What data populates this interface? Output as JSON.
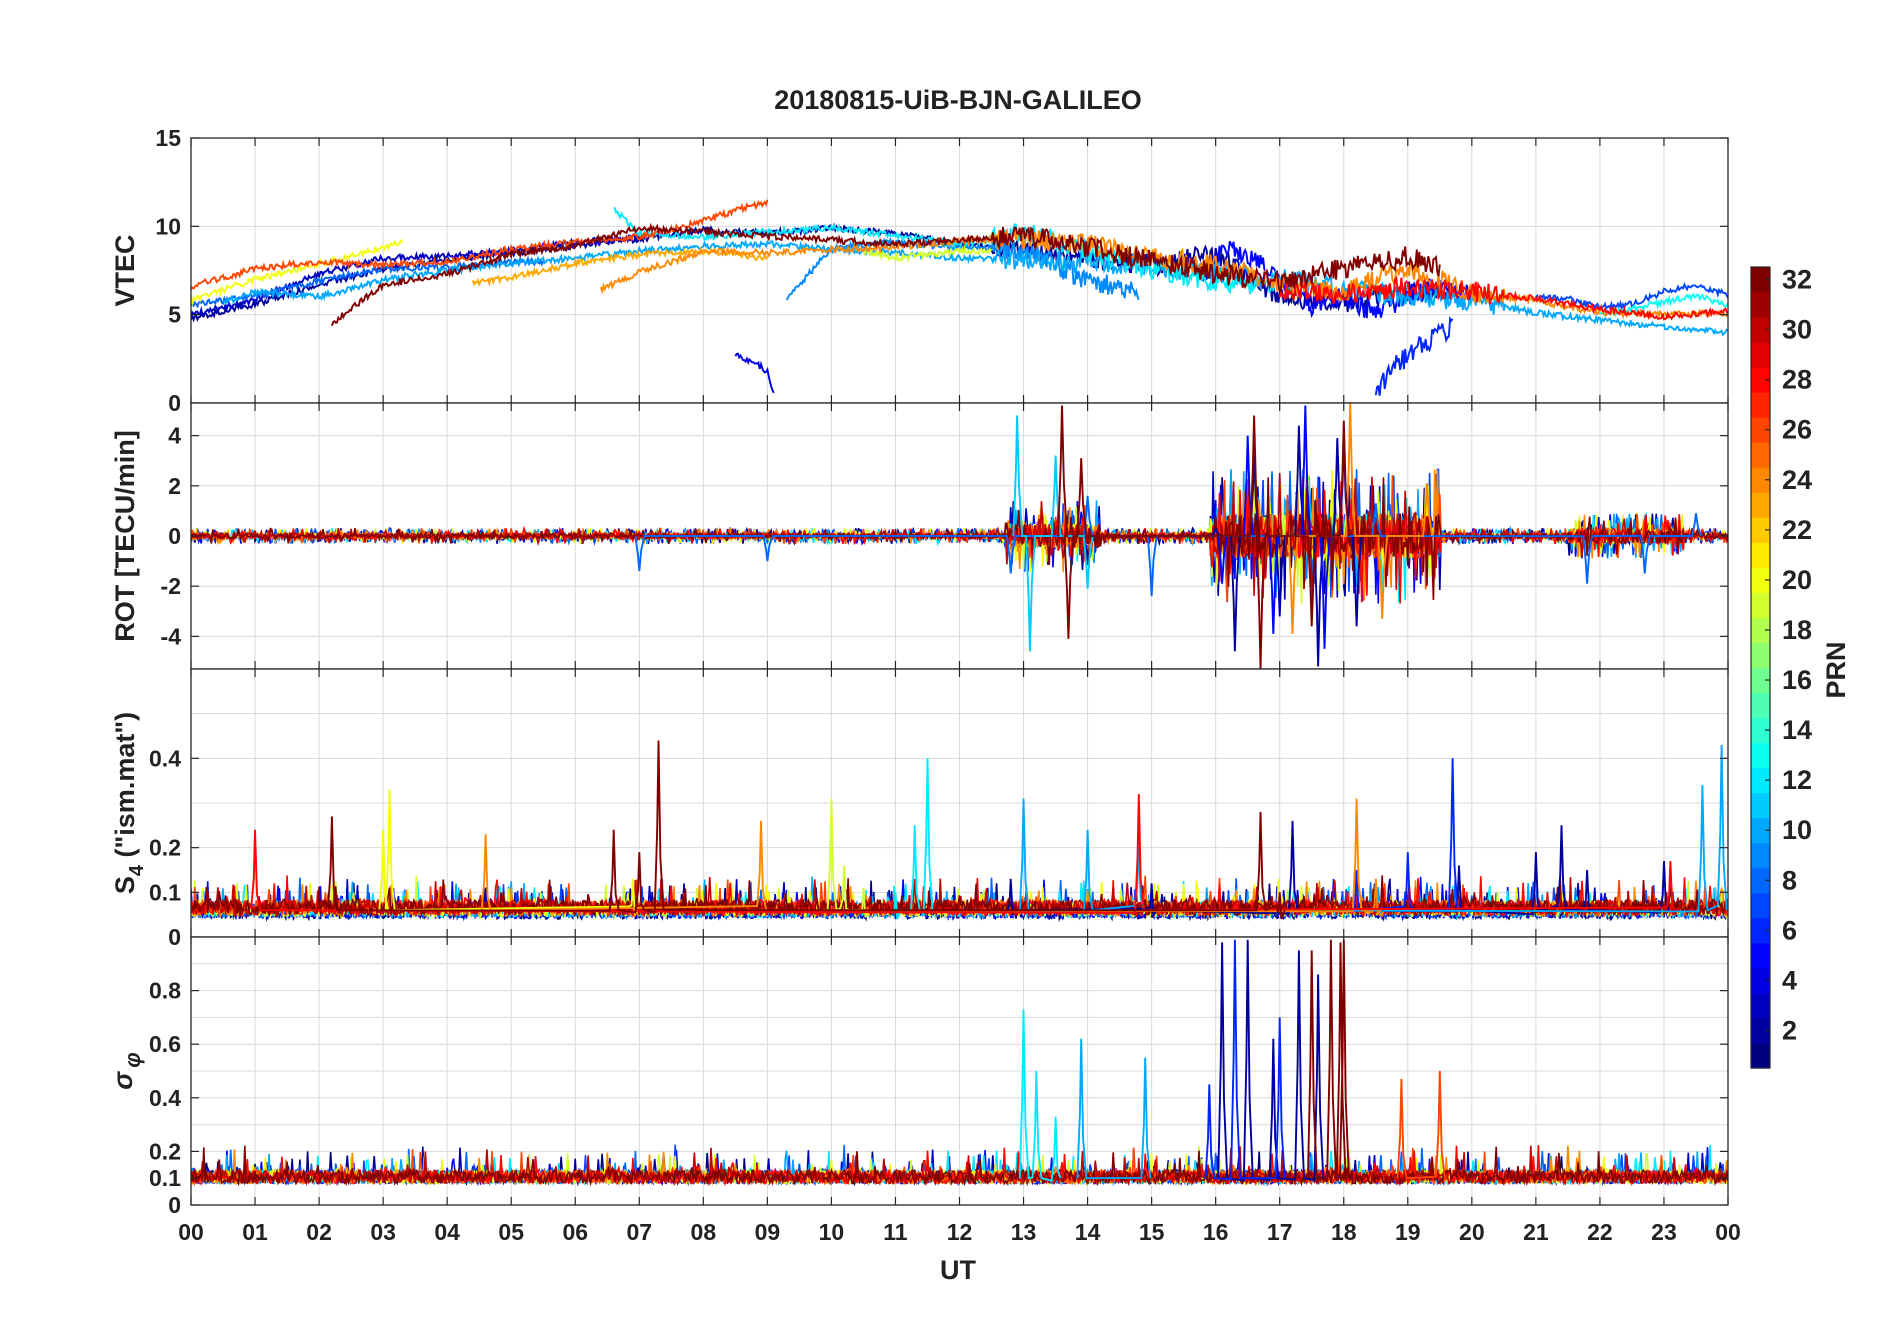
{
  "title": "20180815-UiB-BJN-GALILEO",
  "chart_data": {
    "type": "line",
    "title": "20180815-UiB-BJN-GALILEO",
    "xlabel": "UT",
    "x_range_hours": [
      0,
      24
    ],
    "x_ticks": [
      "00",
      "01",
      "02",
      "03",
      "04",
      "05",
      "06",
      "07",
      "08",
      "09",
      "10",
      "11",
      "12",
      "13",
      "14",
      "15",
      "16",
      "17",
      "18",
      "19",
      "20",
      "21",
      "22",
      "23",
      "00"
    ],
    "colorbar": {
      "label": "PRN",
      "range": [
        1,
        32
      ],
      "ticks": [
        "2",
        "4",
        "6",
        "8",
        "10",
        "12",
        "14",
        "16",
        "18",
        "20",
        "22",
        "24",
        "26",
        "28",
        "30",
        "32"
      ],
      "colormap": "jet"
    },
    "panels": [
      {
        "id": "vtec",
        "ylabel": "VTEC",
        "ylim": [
          0,
          15
        ],
        "yticks": [
          "0",
          "5",
          "10",
          "15"
        ],
        "series": [
          {
            "prn": 2,
            "x": [
              0.0,
              1.0,
              2.0,
              3.0,
              4.0,
              5.0,
              6.0,
              7.0,
              8.0,
              9.0,
              10.0,
              11.0,
              12.0,
              13.0,
              14.0,
              15.0,
              16.0,
              17.0,
              18.0,
              19.0,
              20.0
            ],
            "y": [
              4.8,
              5.6,
              6.7,
              7.6,
              8.1,
              8.5,
              8.9,
              9.3,
              9.8,
              9.6,
              9.9,
              9.6,
              9.0,
              8.6,
              8.1,
              7.8,
              8.4,
              6.0,
              5.7,
              6.4,
              6.3
            ]
          },
          {
            "prn": 3,
            "x": [
              0.0,
              1.0,
              2.0,
              3.0,
              4.0,
              5.0,
              6.0,
              7.0
            ],
            "y": [
              5.0,
              5.8,
              7.3,
              8.2,
              8.3,
              8.6,
              9.1,
              9.4
            ]
          },
          {
            "prn": 4,
            "x": [
              8.5,
              8.8,
              9.0,
              9.1
            ],
            "y": [
              2.7,
              2.3,
              1.8,
              0.6
            ]
          },
          {
            "prn": 5,
            "x": [
              15.8,
              16.2,
              16.6,
              17.0,
              17.5,
              18.0,
              18.5,
              19.0,
              19.5,
              20.0
            ],
            "y": [
              7.0,
              9.0,
              8.2,
              7.1,
              5.5,
              6.0,
              5.1,
              6.1,
              6.6,
              6.0
            ]
          },
          {
            "prn": 6,
            "x": [
              18.5,
              18.8,
              19.2,
              19.7
            ],
            "y": [
              0.5,
              2.1,
              3.2,
              4.4
            ]
          },
          {
            "prn": 7,
            "x": [
              21.0,
              21.5,
              22.0,
              22.5,
              23.0,
              23.5,
              24.0
            ],
            "y": [
              6.0,
              5.9,
              5.4,
              5.6,
              6.3,
              6.7,
              6.1
            ]
          },
          {
            "prn": 8,
            "x": [
              0.0,
              1.0,
              2.0,
              3.0,
              4.0,
              5.0,
              5.5
            ],
            "y": [
              5.5,
              6.1,
              6.9,
              7.6,
              7.7,
              8.0,
              8.0
            ]
          },
          {
            "prn": 9,
            "x": [
              9.3,
              10.0,
              11.0,
              12.0,
              13.0,
              14.0,
              14.8
            ],
            "y": [
              5.8,
              8.8,
              9.1,
              8.8,
              8.7,
              6.9,
              6.3
            ]
          },
          {
            "prn": 10,
            "x": [
              0.5,
              1.0,
              2.0,
              3.0,
              4.0,
              5.0,
              6.0,
              7.0,
              8.0,
              9.0,
              10.0,
              11.0,
              12.0,
              13.0,
              14.0,
              15.0,
              16.0,
              17.0,
              18.0,
              19.0,
              20.0,
              21.0,
              22.0,
              23.0,
              24.0
            ],
            "y": [
              5.7,
              6.3,
              6.0,
              7.0,
              7.5,
              7.9,
              8.2,
              8.6,
              8.9,
              9.0,
              8.7,
              8.5,
              8.2,
              8.1,
              8.0,
              7.7,
              7.4,
              7.0,
              6.5,
              6.0,
              5.8,
              5.1,
              4.7,
              4.3,
              4.0
            ]
          },
          {
            "prn": 12,
            "x": [
              6.6,
              7.0,
              8.0,
              9.0,
              10.0,
              11.0,
              12.0,
              13.0,
              13.5,
              14.0,
              15.0,
              16.0,
              17.0
            ],
            "y": [
              11.0,
              9.6,
              9.4,
              9.7,
              9.9,
              9.5,
              9.0,
              9.6,
              9.2,
              8.6,
              7.6,
              6.9,
              6.6
            ]
          },
          {
            "prn": 13,
            "x": [
              22.0,
              22.5,
              23.0,
              23.5,
              24.0
            ],
            "y": [
              5.0,
              5.3,
              5.7,
              6.1,
              5.5
            ]
          },
          {
            "prn": 19,
            "x": [
              10.5,
              11.0,
              11.5,
              12.0,
              12.5
            ],
            "y": [
              8.6,
              8.2,
              8.4,
              8.6,
              8.6
            ]
          },
          {
            "prn": 20,
            "x": [
              0.0,
              0.5,
              1.0,
              1.5,
              2.0,
              2.5,
              3.0,
              3.3
            ],
            "y": [
              5.8,
              6.4,
              7.0,
              7.4,
              7.9,
              8.3,
              8.8,
              9.2
            ]
          },
          {
            "prn": 23,
            "x": [
              4.4,
              5.0,
              6.0,
              7.0,
              8.0,
              9.0
            ],
            "y": [
              6.8,
              7.1,
              7.9,
              8.4,
              8.6,
              8.2
            ]
          },
          {
            "prn": 24,
            "x": [
              6.4,
              7.0,
              8.0,
              9.0,
              10.0,
              11.0,
              12.0,
              13.0,
              14.0,
              15.0,
              16.0,
              17.0,
              18.0,
              19.0,
              20.0,
              21.0,
              22.0,
              23.0,
              24.0
            ],
            "y": [
              6.4,
              7.4,
              8.6,
              8.5,
              8.7,
              8.8,
              9.2,
              9.3,
              9.0,
              8.3,
              7.8,
              6.7,
              6.3,
              7.7,
              6.2,
              5.8,
              5.1,
              5.0,
              5.1
            ]
          },
          {
            "prn": 26,
            "x": [
              0.0,
              1.0,
              2.0,
              3.0,
              4.0,
              5.0,
              6.0,
              7.0,
              7.5,
              8.0,
              8.5,
              9.0
            ],
            "y": [
              6.6,
              7.6,
              8.0,
              7.8,
              8.0,
              8.7,
              9.1,
              9.4,
              9.8,
              10.3,
              10.9,
              11.4
            ]
          },
          {
            "prn": 28,
            "x": [
              17.0,
              18.0,
              19.0,
              20.0,
              21.0,
              22.0,
              23.0,
              24.0
            ],
            "y": [
              6.5,
              6.1,
              6.6,
              6.3,
              5.9,
              5.3,
              4.9,
              5.2
            ]
          },
          {
            "prn": 32,
            "x": [
              2.2,
              3.0,
              4.0,
              5.0,
              6.0,
              7.0,
              11.0,
              12.0,
              13.0,
              14.0,
              16.5,
              17.0,
              17.5,
              18.0,
              18.5,
              19.0,
              19.5
            ],
            "y": [
              4.5,
              6.7,
              7.3,
              8.4,
              8.9,
              9.9,
              9.0,
              9.2,
              9.5,
              8.8,
              7.0,
              6.8,
              7.3,
              7.6,
              7.9,
              8.3,
              7.6
            ]
          }
        ]
      },
      {
        "id": "rot",
        "ylabel": "ROT [TECU/min]",
        "ylim": [
          -5.3,
          5.3
        ],
        "yticks": [
          "-4",
          "-2",
          "0",
          "2",
          "4"
        ],
        "series": [
          {
            "prn": 2,
            "x": [
              16.0,
              16.3,
              16.6,
              17.0,
              17.3,
              17.6,
              17.9,
              18.2
            ],
            "y": [
              0.3,
              -4.6,
              3.2,
              -3.2,
              4.4,
              -5.2,
              3.9,
              -3.6
            ]
          },
          {
            "prn": 5,
            "x": [
              16.1,
              16.5,
              16.9,
              17.4,
              17.7,
              18.0
            ],
            "y": [
              -1.9,
              4.0,
              -3.9,
              5.2,
              -4.5,
              3.8
            ]
          },
          {
            "prn": 8,
            "x": [
              7.0,
              9.0,
              12.8,
              14.0,
              15.0,
              18.5,
              21.8,
              22.7,
              23.5
            ],
            "y": [
              -1.4,
              -1.0,
              -1.5,
              1.6,
              -2.4,
              1.3,
              -1.9,
              -1.5,
              0.9
            ]
          },
          {
            "prn": 11,
            "x": [
              12.9,
              13.1,
              13.5,
              14.0
            ],
            "y": [
              4.8,
              -4.6,
              3.2,
              -2.1
            ]
          },
          {
            "prn": 24,
            "x": [
              17.2,
              18.1,
              18.6,
              19.3
            ],
            "y": [
              -3.9,
              5.3,
              -3.3,
              2.1
            ]
          },
          {
            "prn": 32,
            "x": [
              13.6,
              13.7,
              13.9,
              16.6,
              16.7,
              17.5,
              18.0
            ],
            "y": [
              5.2,
              -4.1,
              3.1,
              4.8,
              -5.3,
              -3.6,
              4.6
            ]
          }
        ]
      },
      {
        "id": "s4",
        "ylabel": "S4 (\"ism.mat\")",
        "ylim": [
          0,
          0.6
        ],
        "yticks": [
          "0",
          "0.1",
          "0.2",
          "0.4"
        ],
        "series": [
          {
            "prn": 2,
            "x": [
              12.8,
              15.0,
              17.2,
              19.8,
              21.0,
              21.4,
              21.8,
              23.0
            ],
            "y": [
              0.13,
              0.12,
              0.26,
              0.16,
              0.19,
              0.25,
              0.15,
              0.17
            ]
          },
          {
            "prn": 6,
            "x": [
              18.2,
              19.0,
              19.7
            ],
            "y": [
              0.15,
              0.19,
              0.4
            ]
          },
          {
            "prn": 10,
            "x": [
              13.0,
              14.0,
              14.8,
              23.6,
              23.9
            ],
            "y": [
              0.31,
              0.24,
              0.22,
              0.34,
              0.43
            ]
          },
          {
            "prn": 12,
            "x": [
              11.0,
              11.3,
              11.5
            ],
            "y": [
              0.1,
              0.25,
              0.4
            ]
          },
          {
            "prn": 19,
            "x": [
              10.0,
              10.2,
              10.5
            ],
            "y": [
              0.31,
              0.16,
              0.11
            ]
          },
          {
            "prn": 20,
            "x": [
              3.0,
              3.1,
              6.9
            ],
            "y": [
              0.24,
              0.33,
              0.13
            ]
          },
          {
            "prn": 24,
            "x": [
              4.6,
              8.9,
              18.2,
              18.5
            ],
            "y": [
              0.23,
              0.26,
              0.31,
              0.13
            ]
          },
          {
            "prn": 28,
            "x": [
              1.0,
              14.8,
              23.1
            ],
            "y": [
              0.24,
              0.32,
              0.17
            ]
          },
          {
            "prn": 32,
            "x": [
              2.2,
              6.6,
              7.0,
              7.3,
              16.7,
              17.0
            ],
            "y": [
              0.27,
              0.24,
              0.19,
              0.44,
              0.28,
              0.1
            ]
          }
        ]
      },
      {
        "id": "sigma_phi",
        "ylabel": "σ φ",
        "ylim": [
          0,
          1.0
        ],
        "yticks": [
          "0",
          "0.1",
          "0.2",
          "0.4",
          "0.6",
          "0.8"
        ],
        "series": [
          {
            "prn": 2,
            "x": [
              16.1,
              16.5,
              16.9,
              17.3,
              17.6
            ],
            "y": [
              0.98,
              0.99,
              0.62,
              0.95,
              0.86
            ]
          },
          {
            "prn": 6,
            "x": [
              15.9,
              16.3,
              17.0
            ],
            "y": [
              0.45,
              0.99,
              0.7
            ]
          },
          {
            "prn": 10,
            "x": [
              13.9,
              14.9
            ],
            "y": [
              0.62,
              0.55
            ]
          },
          {
            "prn": 12,
            "x": [
              13.0,
              13.2,
              13.5
            ],
            "y": [
              0.73,
              0.5,
              0.33
            ]
          },
          {
            "prn": 26,
            "x": [
              18.9,
              19.5
            ],
            "y": [
              0.47,
              0.5
            ]
          },
          {
            "prn": 32,
            "x": [
              17.5,
              17.8,
              17.95,
              18.0
            ],
            "y": [
              0.95,
              0.99,
              0.98,
              0.99
            ]
          }
        ]
      }
    ]
  }
}
